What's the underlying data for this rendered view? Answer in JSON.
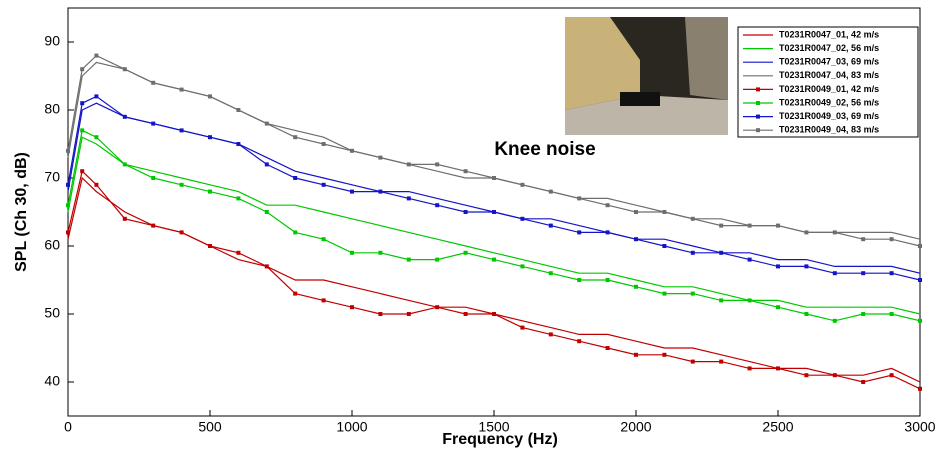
{
  "chart_data": {
    "type": "line",
    "xlabel": "Frequency (Hz)",
    "ylabel": "SPL (Ch 30, dB)",
    "annotation": "Knee noise",
    "x": [
      0,
      50,
      100,
      200,
      300,
      400,
      500,
      600,
      700,
      800,
      900,
      1000,
      1100,
      1200,
      1300,
      1400,
      1500,
      1600,
      1700,
      1800,
      1900,
      2000,
      2100,
      2200,
      2300,
      2400,
      2500,
      2600,
      2700,
      2800,
      2900,
      3000
    ],
    "xlim": [
      0,
      3000
    ],
    "xticks": [
      0,
      500,
      1000,
      1500,
      2000,
      2500,
      3000
    ],
    "ylim": [
      35,
      95
    ],
    "yticks": [
      40,
      50,
      60,
      70,
      80,
      90
    ],
    "grid": false,
    "legend": "upper right",
    "series": [
      {
        "name": "T0231R0047_01, 42 m/s",
        "color": "#c00000",
        "marker": "none",
        "values": [
          61,
          70,
          68,
          65,
          63,
          62,
          60,
          58,
          57,
          55,
          55,
          54,
          53,
          52,
          51,
          51,
          50,
          49,
          48,
          47,
          47,
          46,
          45,
          45,
          44,
          43,
          42,
          42,
          41,
          41,
          42,
          40
        ]
      },
      {
        "name": "T0231R0047_02, 56 m/s",
        "color": "#00c800",
        "marker": "none",
        "values": [
          65,
          76,
          75,
          72,
          71,
          70,
          69,
          68,
          66,
          66,
          65,
          64,
          63,
          62,
          61,
          60,
          59,
          58,
          57,
          56,
          56,
          55,
          54,
          54,
          53,
          52,
          52,
          51,
          51,
          51,
          51,
          50
        ]
      },
      {
        "name": "T0231R0047_03, 69 m/s",
        "color": "#1414c8",
        "marker": "none",
        "values": [
          68,
          80,
          81,
          79,
          78,
          77,
          76,
          75,
          73,
          71,
          70,
          69,
          68,
          68,
          67,
          66,
          65,
          64,
          64,
          63,
          62,
          61,
          61,
          60,
          59,
          59,
          58,
          58,
          57,
          57,
          57,
          56
        ]
      },
      {
        "name": "T0231R0047_04, 83 m/s",
        "color": "#6e6e6e",
        "marker": "none",
        "values": [
          73,
          85,
          87,
          86,
          84,
          83,
          82,
          80,
          78,
          77,
          76,
          74,
          73,
          72,
          71,
          70,
          70,
          69,
          68,
          67,
          67,
          66,
          65,
          64,
          64,
          63,
          63,
          62,
          62,
          62,
          62,
          61
        ]
      },
      {
        "name": "T0231R0049_01, 42 m/s",
        "color": "#c00000",
        "marker": "square",
        "values": [
          62,
          71,
          69,
          64,
          63,
          62,
          60,
          59,
          57,
          53,
          52,
          51,
          50,
          50,
          51,
          50,
          50,
          48,
          47,
          46,
          45,
          44,
          44,
          43,
          43,
          42,
          42,
          41,
          41,
          40,
          41,
          39
        ]
      },
      {
        "name": "T0231R0049_02, 56 m/s",
        "color": "#00c800",
        "marker": "square",
        "values": [
          66,
          77,
          76,
          72,
          70,
          69,
          68,
          67,
          65,
          62,
          61,
          59,
          59,
          58,
          58,
          59,
          58,
          57,
          56,
          55,
          55,
          54,
          53,
          53,
          52,
          52,
          51,
          50,
          49,
          50,
          50,
          49
        ]
      },
      {
        "name": "T0231R0049_03, 69 m/s",
        "color": "#1414c8",
        "marker": "square",
        "values": [
          69,
          81,
          82,
          79,
          78,
          77,
          76,
          75,
          72,
          70,
          69,
          68,
          68,
          67,
          66,
          65,
          65,
          64,
          63,
          62,
          62,
          61,
          60,
          59,
          59,
          58,
          57,
          57,
          56,
          56,
          56,
          55
        ]
      },
      {
        "name": "T0231R0049_04, 83 m/s",
        "color": "#6e6e6e",
        "marker": "square",
        "values": [
          74,
          86,
          88,
          86,
          84,
          83,
          82,
          80,
          78,
          76,
          75,
          74,
          73,
          72,
          72,
          71,
          70,
          69,
          68,
          67,
          66,
          65,
          65,
          64,
          63,
          63,
          63,
          62,
          62,
          61,
          61,
          60
        ]
      }
    ]
  }
}
